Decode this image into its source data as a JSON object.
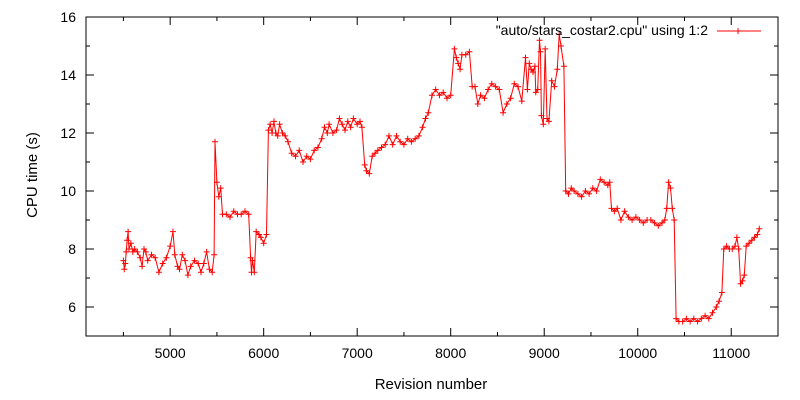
{
  "chart_data": {
    "type": "line",
    "title": "",
    "xlabel": "Revision number",
    "ylabel": "CPU time (s)",
    "xlim": [
      4100,
      11500
    ],
    "ylim": [
      5,
      16
    ],
    "xticks": [
      5000,
      6000,
      7000,
      8000,
      9000,
      10000,
      11000
    ],
    "yticks": [
      6,
      8,
      10,
      12,
      14,
      16
    ],
    "grid": false,
    "legend_position": "top-right",
    "series": [
      {
        "name": "\"auto/stars_costar2.cpu\" using 1:2",
        "color": "#ff0000",
        "marker": "plus",
        "points": [
          [
            4500,
            7.6
          ],
          [
            4510,
            7.3
          ],
          [
            4520,
            7.5
          ],
          [
            4530,
            7.9
          ],
          [
            4540,
            8.3
          ],
          [
            4550,
            8.6
          ],
          [
            4560,
            8.0
          ],
          [
            4580,
            8.2
          ],
          [
            4600,
            7.9
          ],
          [
            4620,
            8.0
          ],
          [
            4650,
            7.9
          ],
          [
            4680,
            7.7
          ],
          [
            4700,
            7.4
          ],
          [
            4720,
            8.0
          ],
          [
            4740,
            7.9
          ],
          [
            4760,
            7.6
          ],
          [
            4800,
            7.8
          ],
          [
            4840,
            7.7
          ],
          [
            4880,
            7.2
          ],
          [
            4920,
            7.5
          ],
          [
            4960,
            7.7
          ],
          [
            5000,
            8.1
          ],
          [
            5030,
            8.6
          ],
          [
            5050,
            7.8
          ],
          [
            5080,
            7.4
          ],
          [
            5100,
            7.3
          ],
          [
            5130,
            7.8
          ],
          [
            5160,
            7.6
          ],
          [
            5190,
            7.1
          ],
          [
            5220,
            7.4
          ],
          [
            5260,
            7.6
          ],
          [
            5300,
            7.5
          ],
          [
            5330,
            7.2
          ],
          [
            5360,
            7.5
          ],
          [
            5390,
            7.9
          ],
          [
            5420,
            7.3
          ],
          [
            5450,
            7.2
          ],
          [
            5470,
            7.8
          ],
          [
            5480,
            11.7
          ],
          [
            5500,
            10.3
          ],
          [
            5520,
            9.8
          ],
          [
            5540,
            10.1
          ],
          [
            5560,
            9.2
          ],
          [
            5600,
            9.2
          ],
          [
            5640,
            9.1
          ],
          [
            5680,
            9.3
          ],
          [
            5720,
            9.2
          ],
          [
            5760,
            9.2
          ],
          [
            5800,
            9.3
          ],
          [
            5840,
            9.2
          ],
          [
            5860,
            7.7
          ],
          [
            5870,
            7.2
          ],
          [
            5880,
            7.6
          ],
          [
            5900,
            7.2
          ],
          [
            5920,
            8.6
          ],
          [
            5950,
            8.5
          ],
          [
            5970,
            8.4
          ],
          [
            6000,
            8.2
          ],
          [
            6030,
            8.5
          ],
          [
            6050,
            12.1
          ],
          [
            6070,
            12.3
          ],
          [
            6090,
            12.0
          ],
          [
            6110,
            12.4
          ],
          [
            6130,
            12.0
          ],
          [
            6150,
            11.9
          ],
          [
            6170,
            12.3
          ],
          [
            6200,
            12.0
          ],
          [
            6230,
            11.9
          ],
          [
            6260,
            11.7
          ],
          [
            6300,
            11.3
          ],
          [
            6340,
            11.2
          ],
          [
            6380,
            11.4
          ],
          [
            6420,
            11.0
          ],
          [
            6460,
            11.2
          ],
          [
            6500,
            11.1
          ],
          [
            6540,
            11.4
          ],
          [
            6580,
            11.5
          ],
          [
            6620,
            11.8
          ],
          [
            6650,
            12.2
          ],
          [
            6680,
            12.0
          ],
          [
            6700,
            12.3
          ],
          [
            6740,
            12.0
          ],
          [
            6780,
            12.1
          ],
          [
            6810,
            12.5
          ],
          [
            6840,
            12.3
          ],
          [
            6870,
            12.1
          ],
          [
            6900,
            12.4
          ],
          [
            6930,
            12.2
          ],
          [
            6960,
            12.5
          ],
          [
            7000,
            12.3
          ],
          [
            7030,
            12.4
          ],
          [
            7050,
            12.2
          ],
          [
            7080,
            10.9
          ],
          [
            7100,
            10.7
          ],
          [
            7130,
            10.6
          ],
          [
            7160,
            11.2
          ],
          [
            7190,
            11.3
          ],
          [
            7220,
            11.4
          ],
          [
            7260,
            11.5
          ],
          [
            7300,
            11.6
          ],
          [
            7340,
            11.9
          ],
          [
            7380,
            11.6
          ],
          [
            7420,
            11.9
          ],
          [
            7460,
            11.7
          ],
          [
            7500,
            11.6
          ],
          [
            7540,
            11.8
          ],
          [
            7580,
            11.7
          ],
          [
            7620,
            11.8
          ],
          [
            7660,
            11.9
          ],
          [
            7700,
            12.2
          ],
          [
            7730,
            12.5
          ],
          [
            7760,
            12.7
          ],
          [
            7800,
            13.3
          ],
          [
            7840,
            13.5
          ],
          [
            7880,
            13.3
          ],
          [
            7920,
            13.4
          ],
          [
            7960,
            13.2
          ],
          [
            8000,
            13.3
          ],
          [
            8040,
            14.9
          ],
          [
            8060,
            14.6
          ],
          [
            8080,
            14.4
          ],
          [
            8100,
            14.2
          ],
          [
            8120,
            14.7
          ],
          [
            8160,
            14.7
          ],
          [
            8200,
            14.8
          ],
          [
            8230,
            13.6
          ],
          [
            8260,
            13.6
          ],
          [
            8290,
            13.0
          ],
          [
            8320,
            13.3
          ],
          [
            8360,
            13.2
          ],
          [
            8400,
            13.5
          ],
          [
            8440,
            13.7
          ],
          [
            8480,
            13.6
          ],
          [
            8520,
            13.5
          ],
          [
            8560,
            12.7
          ],
          [
            8600,
            13.0
          ],
          [
            8640,
            13.2
          ],
          [
            8680,
            13.7
          ],
          [
            8720,
            13.6
          ],
          [
            8760,
            13.1
          ],
          [
            8800,
            14.6
          ],
          [
            8820,
            13.5
          ],
          [
            8840,
            14.4
          ],
          [
            8860,
            14.2
          ],
          [
            8880,
            14.1
          ],
          [
            8900,
            14.3
          ],
          [
            8910,
            13.4
          ],
          [
            8930,
            13.5
          ],
          [
            8950,
            15.2
          ],
          [
            8960,
            14.8
          ],
          [
            8970,
            12.6
          ],
          [
            8990,
            12.3
          ],
          [
            9010,
            14.9
          ],
          [
            9030,
            12.5
          ],
          [
            9050,
            12.4
          ],
          [
            9080,
            13.8
          ],
          [
            9110,
            13.6
          ],
          [
            9140,
            14.2
          ],
          [
            9160,
            15.4
          ],
          [
            9180,
            15.0
          ],
          [
            9210,
            14.3
          ],
          [
            9230,
            10.0
          ],
          [
            9260,
            9.9
          ],
          [
            9290,
            10.1
          ],
          [
            9320,
            10.0
          ],
          [
            9360,
            9.9
          ],
          [
            9400,
            9.8
          ],
          [
            9440,
            10.0
          ],
          [
            9480,
            9.9
          ],
          [
            9520,
            10.1
          ],
          [
            9560,
            10.0
          ],
          [
            9600,
            10.4
          ],
          [
            9640,
            10.3
          ],
          [
            9680,
            10.2
          ],
          [
            9700,
            10.3
          ],
          [
            9720,
            9.4
          ],
          [
            9750,
            9.3
          ],
          [
            9780,
            9.4
          ],
          [
            9820,
            9.0
          ],
          [
            9860,
            9.3
          ],
          [
            9900,
            9.1
          ],
          [
            9940,
            9.0
          ],
          [
            9980,
            9.1
          ],
          [
            10020,
            9.0
          ],
          [
            10060,
            8.9
          ],
          [
            10100,
            9.0
          ],
          [
            10140,
            9.0
          ],
          [
            10180,
            8.9
          ],
          [
            10220,
            8.8
          ],
          [
            10260,
            8.9
          ],
          [
            10290,
            9.0
          ],
          [
            10310,
            9.4
          ],
          [
            10330,
            10.3
          ],
          [
            10350,
            10.1
          ],
          [
            10370,
            9.4
          ],
          [
            10390,
            9.0
          ],
          [
            10410,
            5.6
          ],
          [
            10440,
            5.5
          ],
          [
            10480,
            5.5
          ],
          [
            10520,
            5.6
          ],
          [
            10560,
            5.5
          ],
          [
            10600,
            5.6
          ],
          [
            10640,
            5.5
          ],
          [
            10680,
            5.6
          ],
          [
            10720,
            5.7
          ],
          [
            10760,
            5.6
          ],
          [
            10800,
            5.8
          ],
          [
            10840,
            6.0
          ],
          [
            10870,
            6.2
          ],
          [
            10900,
            6.5
          ],
          [
            10920,
            8.0
          ],
          [
            10950,
            8.1
          ],
          [
            10980,
            8.0
          ],
          [
            11010,
            8.0
          ],
          [
            11040,
            8.1
          ],
          [
            11060,
            8.4
          ],
          [
            11080,
            8.0
          ],
          [
            11100,
            6.8
          ],
          [
            11120,
            6.9
          ],
          [
            11140,
            7.1
          ],
          [
            11160,
            8.1
          ],
          [
            11190,
            8.2
          ],
          [
            11220,
            8.3
          ],
          [
            11250,
            8.4
          ],
          [
            11280,
            8.5
          ],
          [
            11300,
            8.7
          ]
        ]
      }
    ]
  }
}
